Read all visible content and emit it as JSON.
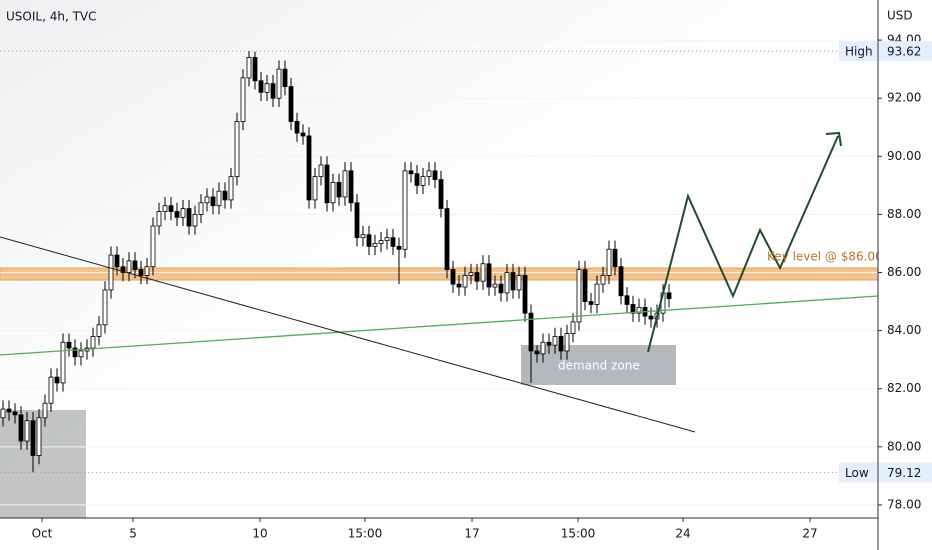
{
  "chart_data": {
    "type": "candlestick",
    "title": "USOIL, 4h, TVC",
    "currency": "USD",
    "x": [
      0,
      1,
      2,
      3,
      4,
      5,
      6,
      7,
      8,
      9,
      10,
      11,
      12,
      13,
      14,
      15,
      16,
      17,
      18,
      19,
      20,
      21,
      22,
      23,
      24,
      25,
      26,
      27,
      28,
      29,
      30,
      31,
      32,
      33,
      34,
      35,
      36,
      37,
      38,
      39,
      40,
      41,
      42,
      43,
      44,
      45,
      46,
      47,
      48,
      49,
      50,
      51,
      52,
      53,
      54,
      55,
      56,
      57,
      58,
      59,
      60,
      61,
      62,
      63,
      64,
      65,
      66,
      67,
      68,
      69,
      70,
      71,
      72,
      73,
      74,
      75,
      76,
      77,
      78,
      79,
      80,
      81,
      82,
      83,
      84,
      85,
      86,
      87,
      88,
      89,
      90,
      91,
      92,
      93,
      94,
      95,
      96,
      97,
      98,
      99,
      100,
      101,
      102,
      103,
      104,
      105,
      106,
      107,
      108,
      109,
      110,
      111
    ],
    "open": [
      81.0,
      81.3,
      81.2,
      81.1,
      80.2,
      80.9,
      79.7,
      81.0,
      81.5,
      82.4,
      82.2,
      83.6,
      83.4,
      83.1,
      83.3,
      83.4,
      83.8,
      84.2,
      85.4,
      86.6,
      86.2,
      86.0,
      86.4,
      86.1,
      85.9,
      86.2,
      87.6,
      88.1,
      88.3,
      88.1,
      87.9,
      88.2,
      87.6,
      88.0,
      88.4,
      88.6,
      88.3,
      88.8,
      88.5,
      89.3,
      91.2,
      92.7,
      93.4,
      92.6,
      92.2,
      92.5,
      92.0,
      93.0,
      92.4,
      91.2,
      90.8,
      90.7,
      88.5,
      89.3,
      89.7,
      88.4,
      89.1,
      88.6,
      89.5,
      88.4,
      87.2,
      87.3,
      86.9,
      87.0,
      87.1,
      87.2,
      86.9,
      86.8,
      89.5,
      89.4,
      89.0,
      89.3,
      89.5,
      89.2,
      88.2,
      86.1,
      85.6,
      85.5,
      85.9,
      86.0,
      85.7,
      86.3,
      85.5,
      85.6,
      85.3,
      86.0,
      85.4,
      85.9,
      84.6,
      83.3,
      83.2,
      83.6,
      83.5,
      83.8,
      83.3,
      83.9,
      84.3,
      86.1,
      85.0,
      84.9,
      85.6,
      85.9,
      86.8,
      86.2,
      85.2,
      84.9,
      84.6,
      84.8,
      84.5,
      84.4,
      84.6,
      85.3
    ],
    "high": [
      81.6,
      81.6,
      81.5,
      81.4,
      81.2,
      81.2,
      81.3,
      81.8,
      82.7,
      82.7,
      83.9,
      83.9,
      83.7,
      83.6,
      83.7,
      84.1,
      84.5,
      85.7,
      86.9,
      86.9,
      86.5,
      86.7,
      86.7,
      86.4,
      86.5,
      87.9,
      88.4,
      88.6,
      88.6,
      88.4,
      88.5,
      88.5,
      88.3,
      88.7,
      88.9,
      88.9,
      89.1,
      89.1,
      89.6,
      91.5,
      93.0,
      93.62,
      93.6,
      92.9,
      92.8,
      92.8,
      93.3,
      93.3,
      92.7,
      91.5,
      91.1,
      91.0,
      89.6,
      90.0,
      90.0,
      89.4,
      89.4,
      89.8,
      89.8,
      88.7,
      87.6,
      87.6,
      87.3,
      87.4,
      87.5,
      87.5,
      87.2,
      89.8,
      89.8,
      89.7,
      89.6,
      89.8,
      89.8,
      89.5,
      88.5,
      86.4,
      85.9,
      86.2,
      86.3,
      86.3,
      86.6,
      86.6,
      85.9,
      85.9,
      86.3,
      86.3,
      86.2,
      86.2,
      84.9,
      83.5,
      83.9,
      83.9,
      84.1,
      84.1,
      84.2,
      84.6,
      86.4,
      86.4,
      85.3,
      85.9,
      86.2,
      87.1,
      87.1,
      86.5,
      85.5,
      85.2,
      85.1,
      85.1,
      84.8,
      84.9,
      85.6,
      85.6
    ],
    "low": [
      80.7,
      80.9,
      80.8,
      79.9,
      79.9,
      79.12,
      79.4,
      80.7,
      81.2,
      81.9,
      81.9,
      83.1,
      82.8,
      82.8,
      83.0,
      83.1,
      83.5,
      83.9,
      85.1,
      85.9,
      85.7,
      85.7,
      85.8,
      85.6,
      85.6,
      85.9,
      87.3,
      87.8,
      87.8,
      87.6,
      87.6,
      87.3,
      87.3,
      87.7,
      88.1,
      88.0,
      88.0,
      88.2,
      88.2,
      89.0,
      90.9,
      92.4,
      92.3,
      91.9,
      91.9,
      91.7,
      91.7,
      92.1,
      90.9,
      90.5,
      90.4,
      88.2,
      88.2,
      89.0,
      88.1,
      88.1,
      88.3,
      88.3,
      88.1,
      86.9,
      86.9,
      86.6,
      86.6,
      86.7,
      86.8,
      86.6,
      85.6,
      86.5,
      89.1,
      88.7,
      88.7,
      89.0,
      88.9,
      87.9,
      85.8,
      85.3,
      85.2,
      85.2,
      85.6,
      85.4,
      85.4,
      85.2,
      85.2,
      85.0,
      85.0,
      85.1,
      85.1,
      84.3,
      82.2,
      82.9,
      82.9,
      83.2,
      83.2,
      83.0,
      83.0,
      83.6,
      84.0,
      84.7,
      84.6,
      84.6,
      85.3,
      85.6,
      85.9,
      84.9,
      84.6,
      84.3,
      84.3,
      84.2,
      84.1,
      84.1,
      84.3,
      84.8
    ],
    "close": [
      81.3,
      81.2,
      81.1,
      80.2,
      80.9,
      79.7,
      81.0,
      81.5,
      82.4,
      82.2,
      83.6,
      83.4,
      83.1,
      83.3,
      83.4,
      83.8,
      84.2,
      85.4,
      86.6,
      86.2,
      86.0,
      86.4,
      86.1,
      85.9,
      86.2,
      87.6,
      88.1,
      88.3,
      88.1,
      87.9,
      88.2,
      87.6,
      88.0,
      88.4,
      88.6,
      88.3,
      88.8,
      88.5,
      89.3,
      91.2,
      92.7,
      93.4,
      92.6,
      92.2,
      92.5,
      92.0,
      93.0,
      92.4,
      91.2,
      90.8,
      90.7,
      88.5,
      89.3,
      89.7,
      88.4,
      89.1,
      88.6,
      89.5,
      88.4,
      87.2,
      87.3,
      86.9,
      87.0,
      87.1,
      87.2,
      86.9,
      86.8,
      89.5,
      89.4,
      89.0,
      89.3,
      89.5,
      89.2,
      88.2,
      86.1,
      85.6,
      85.5,
      85.9,
      86.0,
      85.7,
      86.3,
      85.5,
      85.6,
      85.3,
      86.0,
      85.4,
      85.9,
      84.6,
      83.3,
      83.2,
      83.6,
      83.5,
      83.8,
      83.3,
      83.9,
      84.3,
      86.1,
      85.0,
      84.9,
      85.6,
      85.9,
      86.8,
      86.2,
      85.2,
      84.9,
      84.6,
      84.8,
      84.5,
      84.4,
      84.6,
      85.3,
      85.1
    ],
    "up_color": "#ffffff",
    "down_color": "#000000",
    "xlim": [
      -0.5,
      145.83
    ],
    "xticks": [
      {
        "value": 6.5,
        "label": "Oct"
      },
      {
        "value": 21.67,
        "label": "5"
      },
      {
        "value": 42.83,
        "label": "10"
      },
      {
        "value": 60.33,
        "label": "15:00"
      },
      {
        "value": 78.17,
        "label": "17"
      },
      {
        "value": 95.83,
        "label": "15:00"
      },
      {
        "value": 113.33,
        "label": "24"
      },
      {
        "value": 134.5,
        "label": "27"
      }
    ],
    "ylim": [
      77.55,
      95.38
    ],
    "yticks": [
      {
        "value": 78,
        "label": "78.00"
      },
      {
        "value": 80,
        "label": "80.00"
      },
      {
        "value": 82,
        "label": "82.00"
      },
      {
        "value": 84,
        "label": "84.00"
      },
      {
        "value": 86,
        "label": "86.00"
      },
      {
        "value": 88,
        "label": "88.00"
      },
      {
        "value": 90,
        "label": "90.00"
      },
      {
        "value": 92,
        "label": "92.00"
      },
      {
        "value": 94,
        "label": "94.00"
      }
    ],
    "high_label": "High",
    "high_value": 93.62,
    "low_label": "Low",
    "low_value": 79.12,
    "annotations": [
      "demand zone",
      "Key level @ $86.00"
    ]
  }
}
